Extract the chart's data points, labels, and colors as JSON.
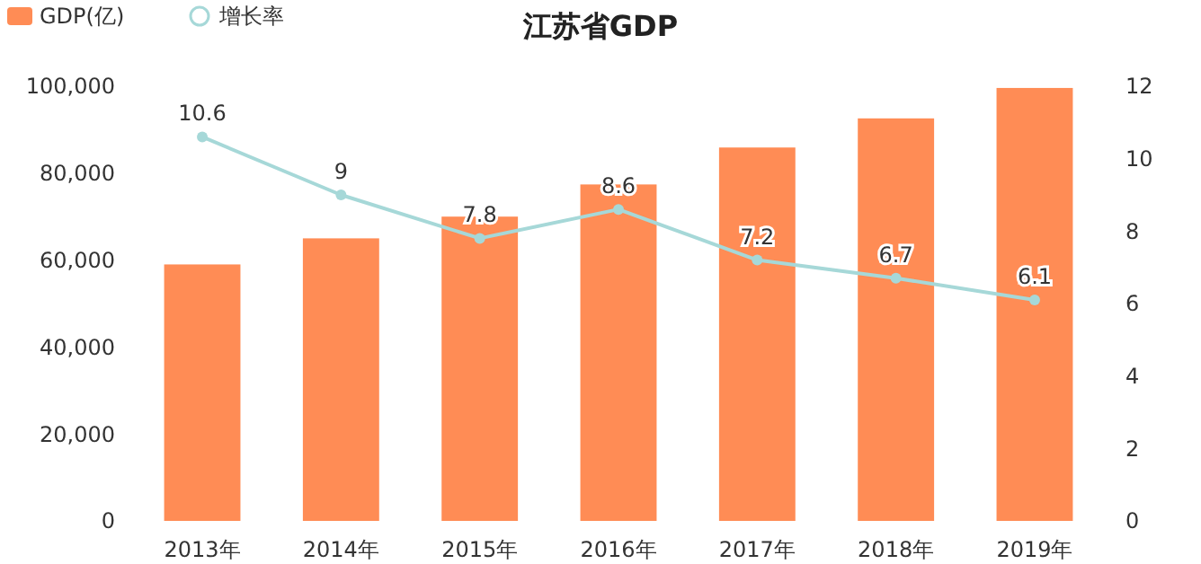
{
  "chart_data": {
    "type": "bar",
    "title": "江苏省GDP",
    "categories": [
      "2013年",
      "2014年",
      "2015年",
      "2016年",
      "2017年",
      "2018年",
      "2019年"
    ],
    "series": [
      {
        "name": "GDP(亿)",
        "color": "#ff8c55",
        "values": [
          59000,
          65000,
          70000,
          77400,
          85900,
          92600,
          99600
        ]
      },
      {
        "name": "增长率",
        "type": "line",
        "axis": "y2",
        "color": "#a6d8d8",
        "values": [
          10.6,
          9,
          7.8,
          8.6,
          7.2,
          6.7,
          6.1
        ],
        "value_labels": [
          "10.6",
          "9",
          "7.8",
          "8.6",
          "7.2",
          "6.7",
          "6.1"
        ]
      }
    ],
    "ylim": [
      0,
      100000
    ],
    "yticks": [
      {
        "value": 0,
        "label": "0"
      },
      {
        "value": 20000,
        "label": "20,000"
      },
      {
        "value": 40000,
        "label": "40,000"
      },
      {
        "value": 60000,
        "label": "60,000"
      },
      {
        "value": 80000,
        "label": "80,000"
      },
      {
        "value": 100000,
        "label": "100,000"
      }
    ],
    "y2lim": [
      0,
      12
    ],
    "y2ticks": [
      0,
      2,
      4,
      6,
      8,
      10,
      12
    ],
    "legend": "top left",
    "marker": "circle",
    "line_style": "solid",
    "grid": false
  }
}
